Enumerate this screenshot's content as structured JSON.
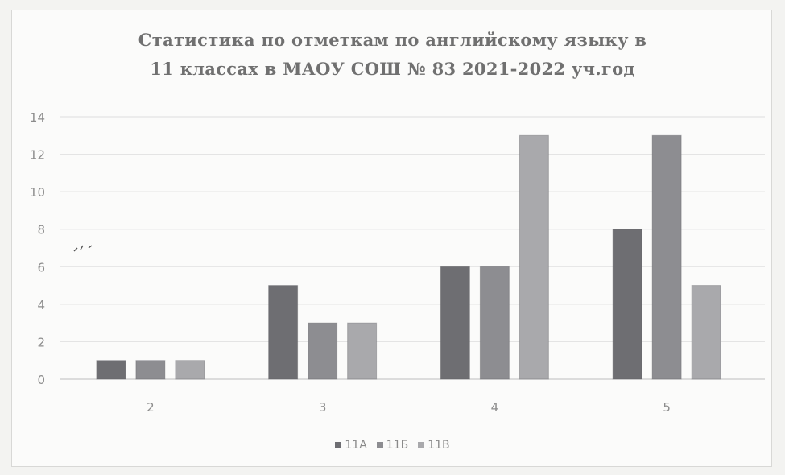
{
  "chart_data": {
    "type": "bar",
    "title": "Статистика  по отметкам по английскому языку в",
    "subtitle": "11 классах  в МАОУ СОШ  № 83 2021-2022 уч.год",
    "categories": [
      "2",
      "3",
      "4",
      "5"
    ],
    "series": [
      {
        "name": "11А",
        "values": [
          1,
          5,
          6,
          8
        ],
        "color": "#6e6e72"
      },
      {
        "name": "11Б",
        "values": [
          1,
          3,
          6,
          13
        ],
        "color": "#8d8d91"
      },
      {
        "name": "11В",
        "values": [
          1,
          3,
          13,
          5
        ],
        "color": "#a9a9ac"
      }
    ],
    "ylim": [
      0,
      14
    ],
    "yticks": [
      "0",
      "2",
      "4",
      "6",
      "8",
      "10",
      "12",
      "14"
    ],
    "grid": true,
    "legend": "bottom",
    "xlabel": "",
    "ylabel": ""
  }
}
